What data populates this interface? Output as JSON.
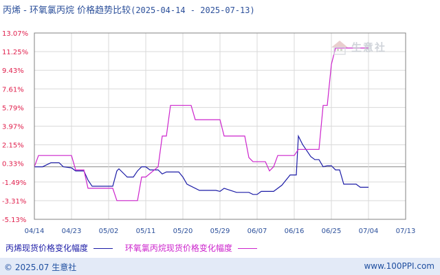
{
  "chart_data": {
    "type": "line",
    "title": "丙烯 - 环氧氯丙烷 价格趋势比较",
    "date_range": "(2025-04-14 - 2025-07-13)",
    "ylim": [
      -5.13,
      13.07
    ],
    "y_ticks": [
      "13.07%",
      "11.25%",
      "9.43%",
      "7.61%",
      "5.79%",
      "3.97%",
      "2.15%",
      "0.33%",
      "-1.49%",
      "-3.31%",
      "-5.13%"
    ],
    "x_ticks": [
      "04/14",
      "04/23",
      "05/02",
      "05/11",
      "05/20",
      "05/29",
      "06/07",
      "06/16",
      "06/25",
      "07/04",
      "07/13"
    ],
    "x_range_days": 90,
    "grid": true,
    "legend_position": "bottom-left",
    "series": [
      {
        "name": "丙烯现货价格变化幅度",
        "color": "#1a1aa6",
        "points": [
          [
            0,
            0.0
          ],
          [
            2,
            0.0
          ],
          [
            4,
            0.4
          ],
          [
            6,
            0.4
          ],
          [
            7,
            0.0
          ],
          [
            9,
            -0.1
          ],
          [
            10,
            -0.4
          ],
          [
            12,
            -0.4
          ],
          [
            13,
            -1.3
          ],
          [
            14,
            -1.9
          ],
          [
            19,
            -1.9
          ],
          [
            20,
            -0.4
          ],
          [
            20.5,
            -0.2
          ],
          [
            22,
            -0.8
          ],
          [
            22.5,
            -1.0
          ],
          [
            24,
            -1.0
          ],
          [
            25,
            -0.4
          ],
          [
            26,
            0.0
          ],
          [
            27,
            0.0
          ],
          [
            28,
            -0.3
          ],
          [
            30,
            -0.3
          ],
          [
            31,
            -0.7
          ],
          [
            32,
            -0.5
          ],
          [
            35,
            -0.5
          ],
          [
            36,
            -1.0
          ],
          [
            37,
            -1.7
          ],
          [
            40,
            -2.3
          ],
          [
            44,
            -2.3
          ],
          [
            45,
            -2.4
          ],
          [
            46,
            -2.1
          ],
          [
            49,
            -2.5
          ],
          [
            52,
            -2.5
          ],
          [
            53,
            -2.7
          ],
          [
            54,
            -2.7
          ],
          [
            55,
            -2.4
          ],
          [
            58,
            -2.4
          ],
          [
            60,
            -1.8
          ],
          [
            62,
            -0.8
          ],
          [
            63,
            -0.8
          ],
          [
            63.5,
            -0.8
          ],
          [
            64,
            3.0
          ],
          [
            65,
            2.2
          ],
          [
            66,
            1.6
          ],
          [
            67,
            1.0
          ],
          [
            68,
            0.7
          ],
          [
            69,
            0.7
          ],
          [
            70,
            0.0
          ],
          [
            71,
            0.1
          ],
          [
            72,
            0.1
          ],
          [
            73,
            -0.3
          ],
          [
            74,
            -0.3
          ],
          [
            75,
            -1.7
          ],
          [
            78,
            -1.7
          ],
          [
            79,
            -2.0
          ],
          [
            81,
            -2.0
          ]
        ]
      },
      {
        "name": "环氧氯丙烷现货价格变化幅度",
        "color": "#cc22cc",
        "points": [
          [
            0,
            0.0
          ],
          [
            1,
            1.1
          ],
          [
            9,
            1.1
          ],
          [
            10,
            -0.3
          ],
          [
            12,
            -0.3
          ],
          [
            13,
            -2.1
          ],
          [
            19,
            -2.1
          ],
          [
            20,
            -3.3
          ],
          [
            25,
            -3.3
          ],
          [
            26,
            -1.0
          ],
          [
            27,
            -1.0
          ],
          [
            30,
            0.0
          ],
          [
            31,
            3.0
          ],
          [
            32,
            3.0
          ],
          [
            33,
            6.0
          ],
          [
            38,
            6.0
          ],
          [
            39,
            4.6
          ],
          [
            45,
            4.6
          ],
          [
            46,
            3.0
          ],
          [
            51,
            3.0
          ],
          [
            52,
            0.9
          ],
          [
            53,
            0.5
          ],
          [
            56,
            0.5
          ],
          [
            57,
            -0.4
          ],
          [
            58,
            0.0
          ],
          [
            59,
            1.1
          ],
          [
            63,
            1.1
          ],
          [
            64,
            1.7
          ],
          [
            69,
            1.7
          ],
          [
            70,
            6.0
          ],
          [
            71,
            6.0
          ],
          [
            72,
            10.0
          ],
          [
            73,
            11.6
          ],
          [
            81,
            11.6
          ]
        ]
      }
    ]
  },
  "legend": {
    "items": [
      {
        "label": "丙烯现货价格变化幅度",
        "color": "#1a1aa6"
      },
      {
        "label": "环氧氯丙烷现货价格变化幅度",
        "color": "#cc22cc"
      }
    ]
  },
  "watermark_text": "生意社",
  "footer": {
    "copyright": "© 2025.07 生意社",
    "url": "www.100PPI.com"
  },
  "colors": {
    "axis_text": "#e0204d",
    "tick_text": "#2b4f9a",
    "grid": "#d9d9d9",
    "title": "#2b4f9a",
    "footer_bg": "#e3eaf7"
  }
}
